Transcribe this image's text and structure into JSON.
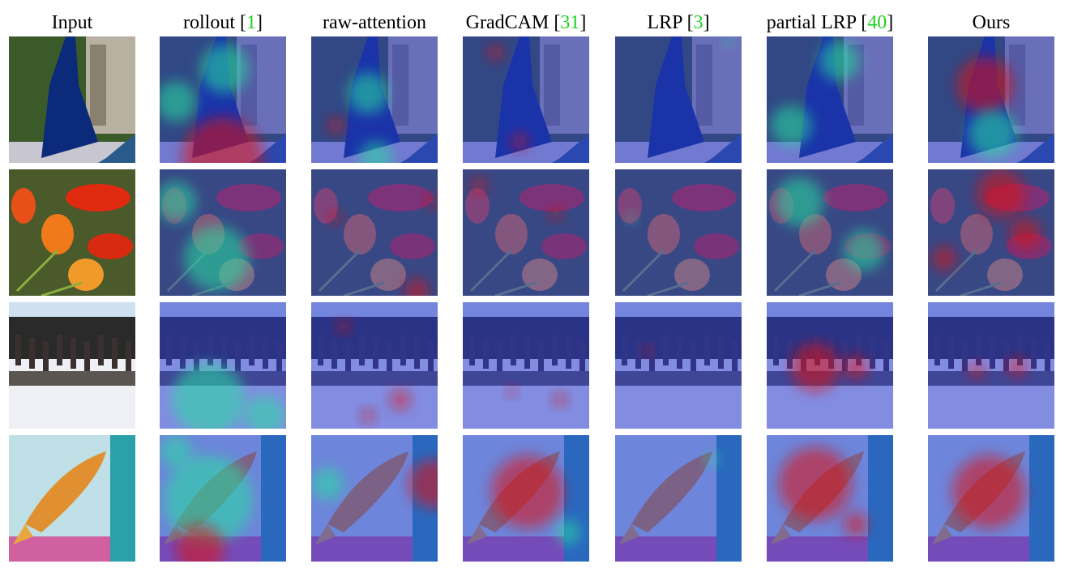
{
  "columns": [
    {
      "key": "input",
      "label": "Input",
      "citation": ""
    },
    {
      "key": "rollout",
      "label": "rollout",
      "citation": "1"
    },
    {
      "key": "raw",
      "label": "raw-attention",
      "citation": ""
    },
    {
      "key": "gradcam",
      "label": "GradCAM",
      "citation": "31"
    },
    {
      "key": "lrp",
      "label": "LRP",
      "citation": "3"
    },
    {
      "key": "plrp",
      "label": "partial LRP",
      "citation": "40"
    },
    {
      "key": "ours",
      "label": "Ours",
      "citation": ""
    }
  ],
  "colors": {
    "citation": "#1fd01f",
    "heat_low": "#1a2aa8",
    "heat_mid": "#25e0a0",
    "heat_high": "#e01010"
  }
}
